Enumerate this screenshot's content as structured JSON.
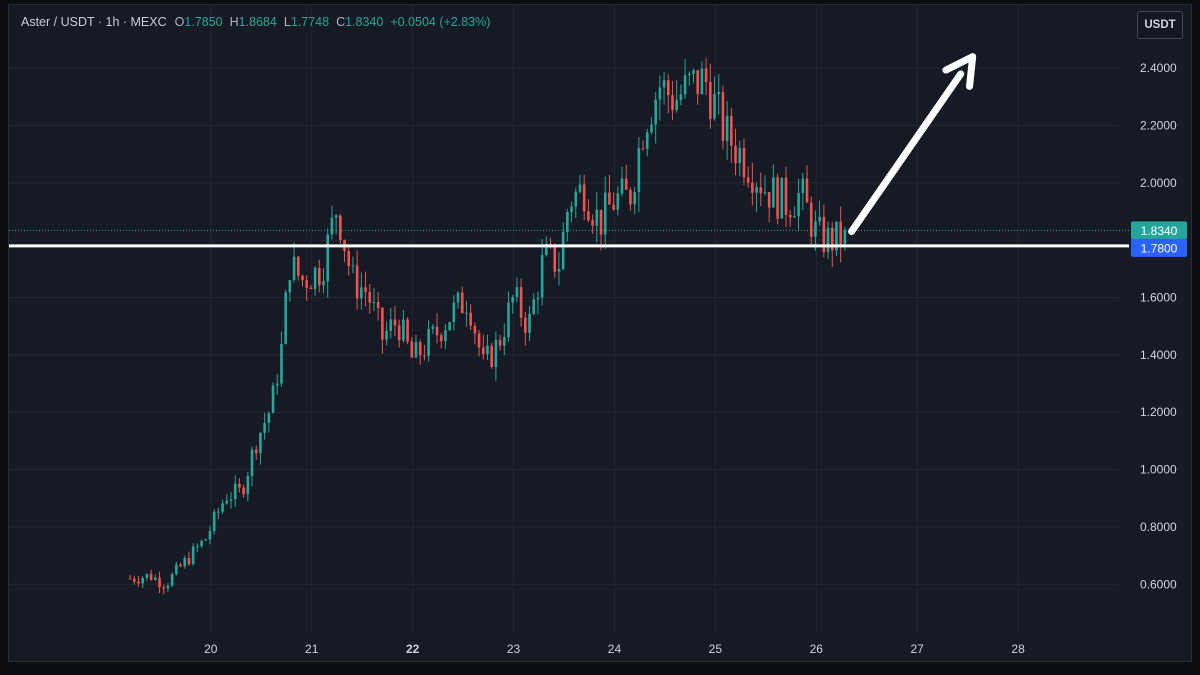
{
  "header": {
    "symbol": "Aster / USDT · 1h · MEXC",
    "open_label": "O",
    "open_value": "1.7850",
    "high_label": "H",
    "high_value": "1.8684",
    "low_label": "L",
    "low_value": "1.7748",
    "close_label": "C",
    "close_value": "1.8340",
    "change_value": "+0.0504 (+2.83%)"
  },
  "currency_button": "USDT",
  "colors": {
    "background": "#161a25",
    "grid": "#232733",
    "up": "#26a69a",
    "down": "#ef5350",
    "axis_text": "#d1d4dc",
    "support_line": "#ffffff",
    "price_label_close": "#26a69a",
    "price_label_support": "#2962ff",
    "annotation_arrow": "#ffffff"
  },
  "chart_data": {
    "type": "candlestick",
    "y_ticks": [
      "2.4000",
      "2.2000",
      "2.0000",
      "1.8000",
      "1.6000",
      "1.4000",
      "1.2000",
      "1.0000",
      "0.8000",
      "0.6000"
    ],
    "y_tick_values": [
      2.4,
      2.2,
      2.0,
      1.8,
      1.6,
      1.4,
      1.2,
      1.0,
      0.8,
      0.6
    ],
    "x_ticks": [
      "20",
      "21",
      "22",
      "23",
      "24",
      "25",
      "26",
      "27",
      "28"
    ],
    "x_tick_values": [
      20,
      21,
      22,
      23,
      24,
      25,
      26,
      27,
      28
    ],
    "ylim": [
      0.43,
      2.62
    ],
    "xlim": [
      18.0,
      29.0
    ],
    "grid": true,
    "last_price": 1.834,
    "last_price_label": "1.8340",
    "support_level": 1.78,
    "support_label": "1.7800",
    "arrow_annotation": {
      "direction": "up-right",
      "from": [
        26.35,
        1.83
      ],
      "to": [
        27.55,
        2.44
      ]
    },
    "waypoints": [
      [
        19.2,
        0.62
      ],
      [
        19.4,
        0.63
      ],
      [
        19.55,
        0.6
      ],
      [
        19.75,
        0.68
      ],
      [
        19.95,
        0.76
      ],
      [
        20.15,
        0.91
      ],
      [
        20.3,
        0.92
      ],
      [
        20.45,
        1.1
      ],
      [
        20.6,
        1.22
      ],
      [
        20.7,
        1.42
      ],
      [
        20.78,
        1.72
      ],
      [
        20.9,
        1.66
      ],
      [
        21.1,
        1.7
      ],
      [
        21.25,
        1.92
      ],
      [
        21.4,
        1.66
      ],
      [
        21.55,
        1.62
      ],
      [
        21.7,
        1.46
      ],
      [
        21.85,
        1.52
      ],
      [
        22.0,
        1.38
      ],
      [
        22.2,
        1.46
      ],
      [
        22.4,
        1.55
      ],
      [
        22.55,
        1.6
      ],
      [
        22.7,
        1.36
      ],
      [
        22.85,
        1.44
      ],
      [
        23.0,
        1.6
      ],
      [
        23.15,
        1.5
      ],
      [
        23.3,
        1.74
      ],
      [
        23.45,
        1.72
      ],
      [
        23.55,
        1.94
      ],
      [
        23.7,
        1.98
      ],
      [
        23.85,
        1.86
      ],
      [
        24.0,
        1.94
      ],
      [
        24.15,
        1.95
      ],
      [
        24.3,
        2.22
      ],
      [
        24.45,
        2.34
      ],
      [
        24.6,
        2.29
      ],
      [
        24.75,
        2.34
      ],
      [
        24.9,
        2.36
      ],
      [
        25.1,
        2.17
      ],
      [
        25.3,
        2.08
      ],
      [
        25.5,
        1.98
      ],
      [
        25.7,
        1.93
      ],
      [
        25.85,
        1.96
      ],
      [
        26.0,
        1.82
      ],
      [
        26.1,
        1.8
      ],
      [
        26.2,
        1.8
      ],
      [
        26.32,
        1.834
      ]
    ]
  }
}
